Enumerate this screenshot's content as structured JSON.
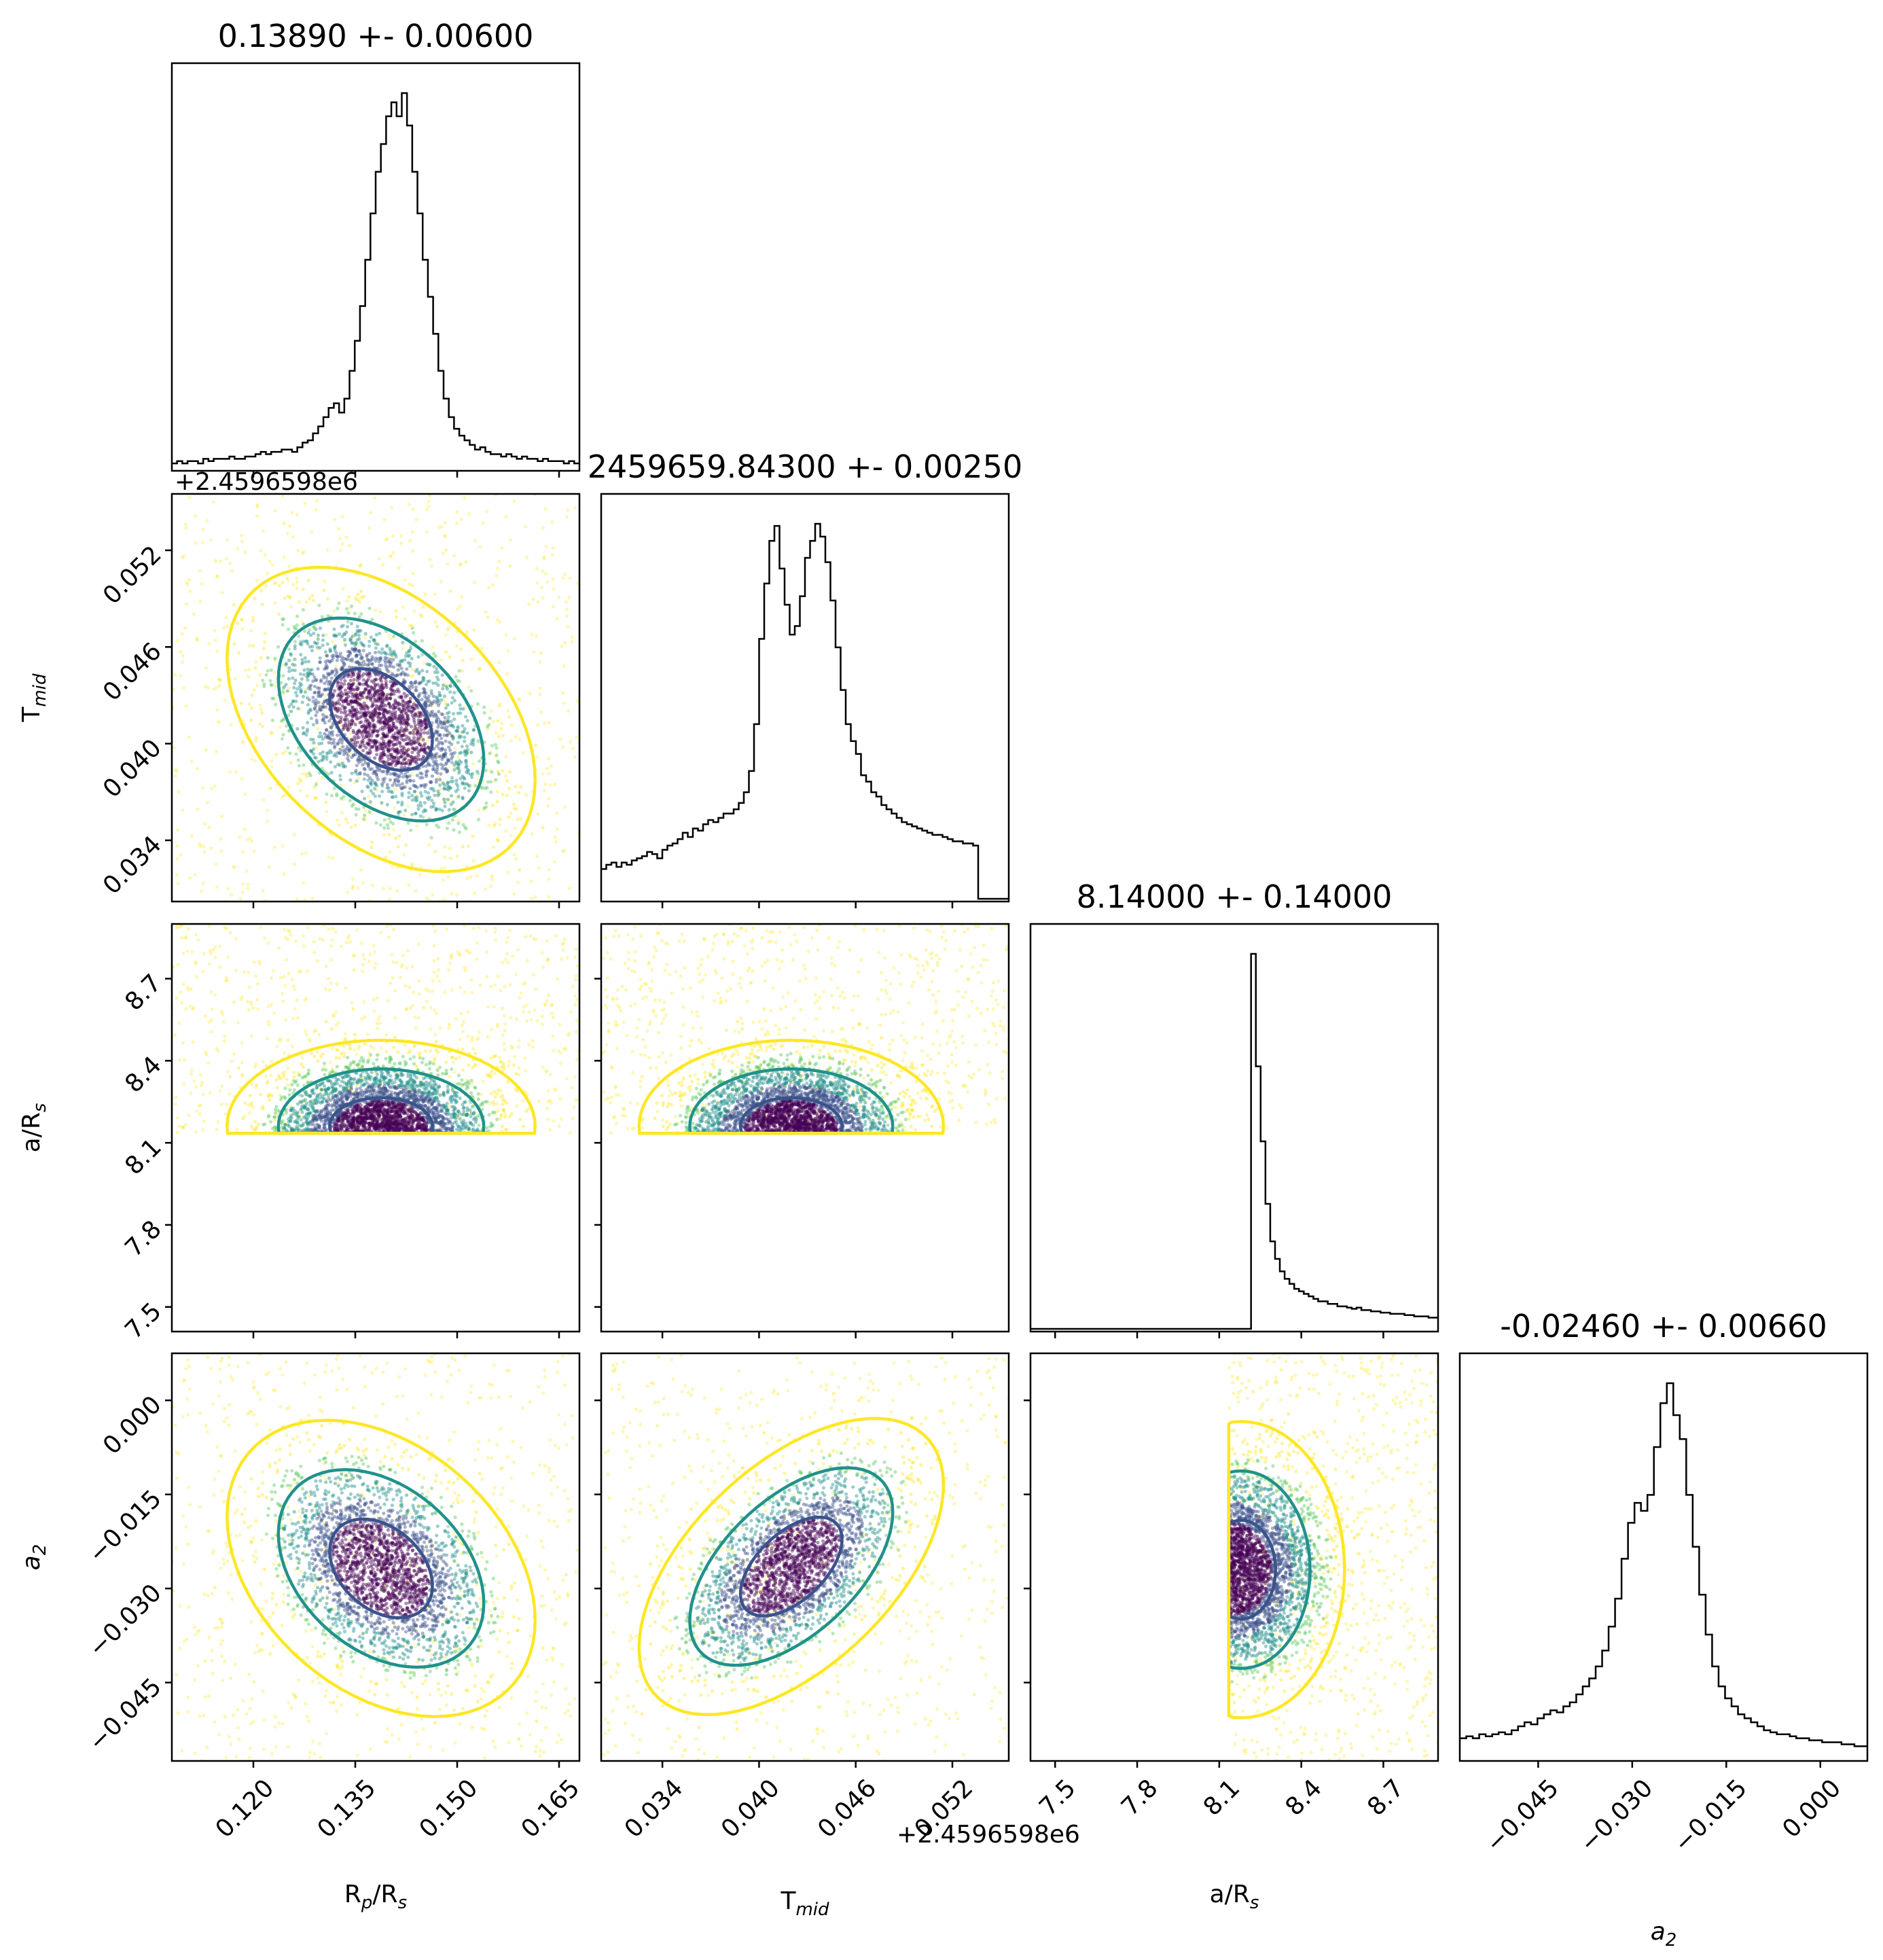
{
  "chart_data": {
    "type": "scatter",
    "subtype": "corner-plot",
    "params": [
      {
        "id": "rp",
        "title": "0.13890 +- 0.00600",
        "range": [
          0.108,
          0.168
        ],
        "ticks": [
          0.12,
          0.135,
          0.15,
          0.165
        ],
        "tick_labels": [
          "0.120",
          "0.135",
          "0.150",
          "0.165"
        ],
        "label_main": "R",
        "label_sub": "p",
        "label_suffix": "/R",
        "label_sub2": "s",
        "offset": "",
        "hist": [
          2,
          3,
          2,
          3,
          3,
          2,
          4,
          3,
          4,
          4,
          4,
          5,
          4,
          4,
          5,
          5,
          6,
          7,
          6,
          7,
          7,
          8,
          8,
          7,
          9,
          11,
          12,
          15,
          18,
          22,
          26,
          28,
          24,
          30,
          42,
          55,
          70,
          90,
          110,
          128,
          140,
          152,
          158,
          152,
          162,
          148,
          128,
          110,
          90,
          74,
          58,
          42,
          30,
          22,
          17,
          14,
          12,
          10,
          8,
          9,
          7,
          6,
          6,
          5,
          6,
          5,
          4,
          5,
          4,
          4,
          3,
          4,
          3,
          3,
          3,
          2,
          3,
          2
        ]
      },
      {
        "id": "tmid",
        "title": "2459659.84300 +- 0.00250",
        "range": [
          0.0302,
          0.0555
        ],
        "ticks": [
          0.034,
          0.04,
          0.046,
          0.052
        ],
        "tick_labels": [
          "0.034",
          "0.040",
          "0.046",
          "0.052"
        ],
        "label_main": "T",
        "label_sub": "mid",
        "label_suffix": "",
        "label_sub2": "",
        "offset": "+2.4596598e6",
        "hist": [
          14,
          16,
          17,
          15,
          17,
          16,
          18,
          19,
          20,
          22,
          21,
          19,
          23,
          25,
          26,
          28,
          31,
          29,
          33,
          32,
          35,
          37,
          36,
          38,
          40,
          40,
          42,
          45,
          50,
          60,
          82,
          122,
          148,
          168,
          175,
          155,
          138,
          124,
          128,
          142,
          160,
          168,
          176,
          170,
          158,
          140,
          118,
          98,
          82,
          74,
          68,
          58,
          55,
          50,
          48,
          44,
          42,
          40,
          38,
          36,
          35,
          34,
          33,
          32,
          31,
          30,
          30,
          29,
          28,
          27,
          27,
          26,
          26,
          25,
          0,
          0,
          0,
          0,
          0,
          0
        ]
      },
      {
        "id": "ars",
        "title": "8.14000 +- 0.14000",
        "range": [
          7.41,
          8.9
        ],
        "ticks": [
          7.5,
          7.8,
          8.1,
          8.4,
          8.7
        ],
        "tick_labels": [
          "7.5",
          "7.8",
          "8.1",
          "8.4",
          "8.7"
        ],
        "label_main": "a/R",
        "label_sub": "s",
        "label_suffix": "",
        "label_sub2": "",
        "offset": "",
        "hist": [
          0,
          0,
          0,
          0,
          0,
          0,
          0,
          0,
          0,
          0,
          0,
          0,
          0,
          0,
          0,
          0,
          0,
          0,
          0,
          0,
          0,
          0,
          0,
          0,
          0,
          0,
          0,
          0,
          0,
          0,
          0,
          0,
          0,
          0,
          0,
          0,
          0,
          0,
          0,
          0,
          0,
          0,
          0,
          0,
          0,
          0,
          300,
          210,
          150,
          100,
          70,
          56,
          46,
          40,
          36,
          32,
          30,
          28,
          26,
          24,
          22,
          22,
          20,
          20,
          18,
          18,
          17,
          16,
          17,
          15,
          15,
          14,
          14,
          13,
          13,
          12,
          12,
          12,
          11,
          11,
          10,
          10,
          10,
          9,
          9
        ]
      },
      {
        "id": "a2",
        "title": "-0.02460 +- 0.00660",
        "range": [
          -0.0575,
          0.0075
        ],
        "ticks": [
          -0.045,
          -0.03,
          -0.015,
          0.0
        ],
        "tick_labels": [
          "−0.045",
          "−0.030",
          "−0.015",
          "0.000"
        ],
        "label_main": "a",
        "label_sub": "2",
        "label_suffix": "",
        "label_sub2": "",
        "label_italic": true,
        "offset": "",
        "hist": [
          10,
          11,
          10,
          12,
          11,
          12,
          13,
          12,
          14,
          16,
          18,
          17,
          20,
          22,
          24,
          23,
          26,
          28,
          32,
          36,
          40,
          46,
          54,
          66,
          80,
          100,
          118,
          128,
          124,
          132,
          156,
          178,
          188,
          172,
          160,
          132,
          106,
          82,
          62,
          46,
          36,
          30,
          26,
          22,
          20,
          18,
          16,
          14,
          13,
          12,
          12,
          11,
          10,
          10,
          9,
          9,
          8,
          8,
          8,
          7,
          7,
          6,
          6
        ]
      }
    ],
    "pairs": [
      {
        "row": 1,
        "col": 0,
        "center": [
          0.1388,
          0.0415
        ],
        "std": [
          0.0072,
          0.003
        ],
        "rho": -0.4
      },
      {
        "row": 2,
        "col": 0,
        "center": [
          0.1388,
          8.16
        ],
        "std": [
          0.0072,
          0.1
        ],
        "rho": 0.0
      },
      {
        "row": 2,
        "col": 1,
        "center": [
          0.042,
          8.16
        ],
        "std": [
          0.003,
          0.1
        ],
        "rho": 0.0
      },
      {
        "row": 3,
        "col": 0,
        "center": [
          0.1388,
          -0.0268
        ],
        "std": [
          0.0072,
          0.0075
        ],
        "rho": -0.35
      },
      {
        "row": 3,
        "col": 1,
        "center": [
          0.042,
          -0.0265
        ],
        "std": [
          0.003,
          0.0075
        ],
        "rho": 0.55
      },
      {
        "row": 3,
        "col": 2,
        "center": [
          8.18,
          -0.027
        ],
        "std": [
          0.12,
          0.0075
        ],
        "rho": 0.0
      }
    ],
    "contour_levels": [
      {
        "level": 1,
        "color": "#3b528b"
      },
      {
        "level": 2,
        "color": "#21918c"
      },
      {
        "level": 3,
        "color": "#fde725"
      }
    ],
    "point_colors": [
      "#440154",
      "#3b528b",
      "#21918c",
      "#5ec962",
      "#fde725"
    ]
  }
}
